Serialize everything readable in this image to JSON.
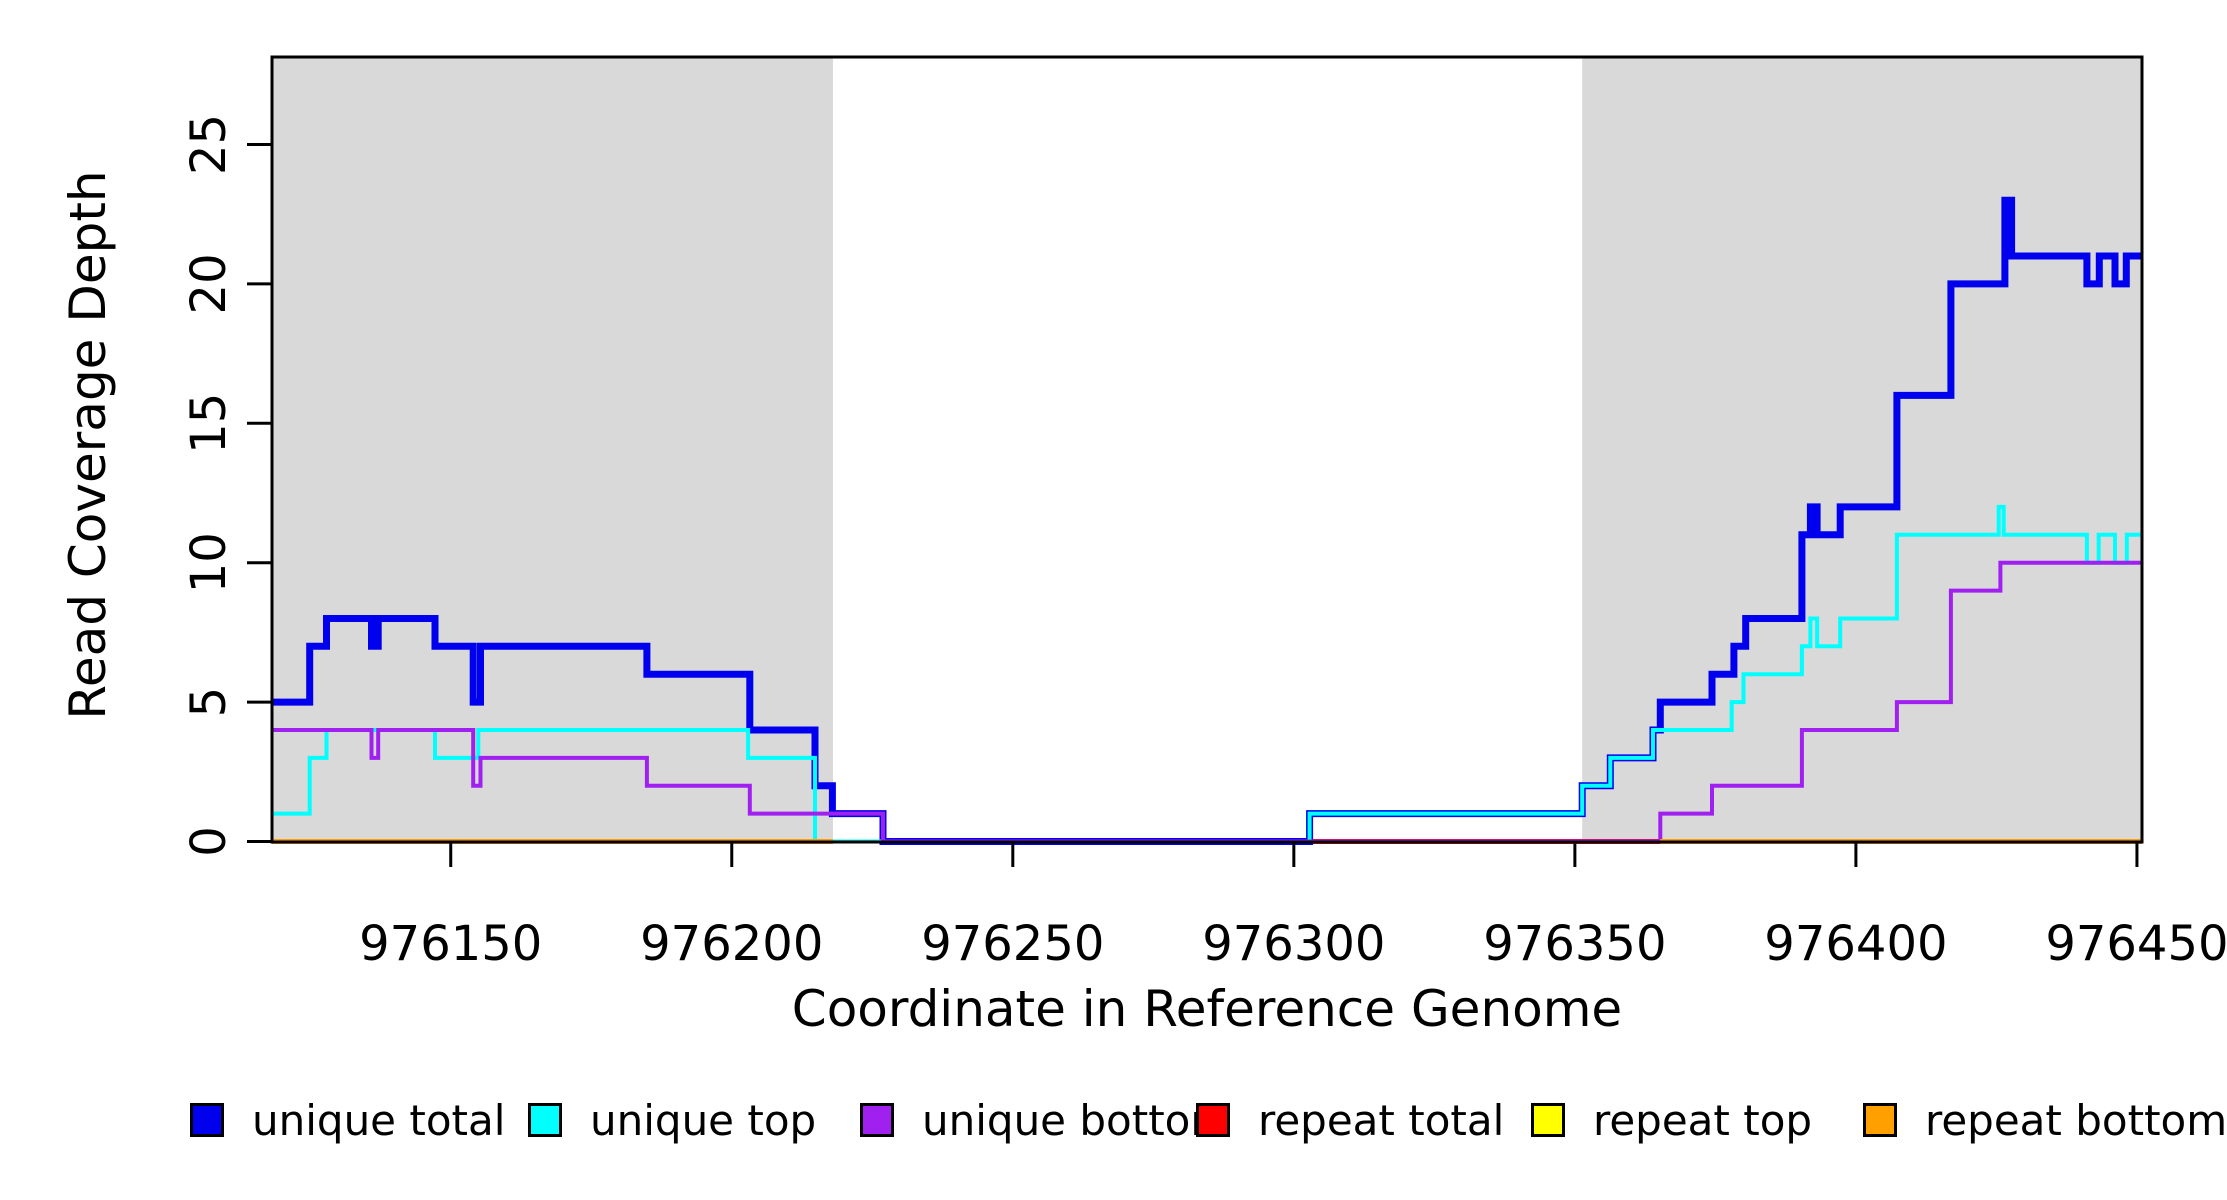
{
  "figure": {
    "background": "#ffffff",
    "plot_background": "#ffffff",
    "shaded_region_fill": "#d9d9d9",
    "box_color": "#000000"
  },
  "x_axis": {
    "title": "Coordinate in Reference Genome",
    "tick_values": [
      976150,
      976200,
      976250,
      976300,
      976350,
      976400,
      976450
    ],
    "tick_labels": [
      "976150",
      "976200",
      "976250",
      "976300",
      "976350",
      "976400",
      "976450"
    ]
  },
  "y_axis": {
    "title": "Read Coverage Depth",
    "tick_values": [
      0,
      5,
      10,
      15,
      20,
      25
    ],
    "tick_labels": [
      "0",
      "5",
      "10",
      "15",
      "20",
      "25"
    ]
  },
  "legend": {
    "items": [
      {
        "label": "unique total",
        "color": "#0000ee",
        "x": 190
      },
      {
        "label": "unique top",
        "color": "#00ffff",
        "x": 528
      },
      {
        "label": "unique bottom",
        "color": "#a020f0",
        "x": 860
      },
      {
        "label": "repeat total",
        "color": "#ff0000",
        "x": 1196
      },
      {
        "label": "repeat top",
        "color": "#ffff00",
        "x": 1531
      },
      {
        "label": "repeat bottom",
        "color": "#ffa000",
        "x": 1863
      }
    ]
  },
  "chart_data": {
    "type": "line",
    "subtype": "step-coverage",
    "title": "",
    "xlabel": "Coordinate in Reference Genome",
    "ylabel": "Read Coverage Depth",
    "xlim": [
      976118.2,
      976450.9
    ],
    "ylim": [
      0,
      28.1
    ],
    "grid": false,
    "legend_position": "bottom",
    "shaded_regions": [
      {
        "name": "left-gray-region",
        "from": 976118.2,
        "to": 976218.0
      },
      {
        "name": "right-gray-region",
        "from": 976351.3,
        "to": 976450.9
      }
    ],
    "zero_segments_below": [
      {
        "name": "repeat-total-zero",
        "color": "#ff0000",
        "from": 976302.8,
        "to": 976365.2,
        "width": 5
      }
    ],
    "series": [
      {
        "name": "unique total",
        "color": "#0000ee",
        "width": 7,
        "points": [
          [
            976118.2,
            5
          ],
          [
            976124.9,
            7
          ],
          [
            976127.9,
            8
          ],
          [
            976135.9,
            7
          ],
          [
            976137.1,
            8
          ],
          [
            976147.2,
            7
          ],
          [
            976154.0,
            5
          ],
          [
            976155.3,
            7
          ],
          [
            976184.9,
            6
          ],
          [
            976203.2,
            4
          ],
          [
            976214.8,
            2
          ],
          [
            976217.9,
            1
          ],
          [
            976226.9,
            0
          ],
          [
            976302.8,
            1
          ],
          [
            976351.3,
            2
          ],
          [
            976356.3,
            3
          ],
          [
            976363.9,
            4
          ],
          [
            976365.2,
            5
          ],
          [
            976374.4,
            6
          ],
          [
            976378.3,
            7
          ],
          [
            976380.4,
            8
          ],
          [
            976390.4,
            11
          ],
          [
            976391.9,
            12
          ],
          [
            976393.1,
            11
          ],
          [
            976397.2,
            12
          ],
          [
            976407.3,
            16
          ],
          [
            976416.9,
            20
          ],
          [
            976426.5,
            23
          ],
          [
            976427.7,
            21
          ],
          [
            976441.1,
            20
          ],
          [
            976443.3,
            21
          ],
          [
            976446.1,
            20
          ],
          [
            976448.1,
            21
          ]
        ]
      },
      {
        "name": "unique top",
        "color": "#00ffff",
        "width": 4,
        "points": [
          [
            976118.2,
            1
          ],
          [
            976124.9,
            3
          ],
          [
            976127.9,
            4
          ],
          [
            976147.2,
            3
          ],
          [
            976154.9,
            4
          ],
          [
            976202.9,
            3
          ],
          [
            976214.8,
            0
          ],
          [
            976302.8,
            1
          ],
          [
            976351.3,
            2
          ],
          [
            976356.3,
            3
          ],
          [
            976363.9,
            4
          ],
          [
            976377.9,
            5
          ],
          [
            976380.0,
            6
          ],
          [
            976390.4,
            7
          ],
          [
            976391.9,
            8
          ],
          [
            976393.1,
            7
          ],
          [
            976397.2,
            8
          ],
          [
            976407.3,
            11
          ],
          [
            976425.4,
            12
          ],
          [
            976426.3,
            11
          ],
          [
            976441.1,
            10
          ],
          [
            976443.2,
            11
          ],
          [
            976446.1,
            10
          ],
          [
            976448.2,
            11
          ]
        ]
      },
      {
        "name": "unique bottom",
        "color": "#a020f0",
        "width": 4,
        "points": [
          [
            976118.2,
            4
          ],
          [
            976135.9,
            3
          ],
          [
            976137.1,
            4
          ],
          [
            976154.0,
            2
          ],
          [
            976155.3,
            3
          ],
          [
            976184.9,
            2
          ],
          [
            976203.2,
            1
          ],
          [
            976226.9,
            0
          ],
          [
            976365.2,
            1
          ],
          [
            976374.4,
            2
          ],
          [
            976390.4,
            4
          ],
          [
            976407.3,
            5
          ],
          [
            976416.9,
            9
          ],
          [
            976425.7,
            10
          ]
        ]
      }
    ],
    "zero_segments_above": [
      {
        "name": "repeat-bottom-zero-left",
        "color": "#ffa000",
        "from": 976118.2,
        "to": 976218.0,
        "width": 5
      },
      {
        "name": "repeat-bottom-zero-right",
        "color": "#ffa000",
        "from": 976365.2,
        "to": 976450.9,
        "width": 5
      }
    ],
    "hidden_series_note": "repeat top (yellow) lies at 0 beneath repeat bottom (orange); repeat total (red) visible at 0 only between 976303 and 976365"
  }
}
